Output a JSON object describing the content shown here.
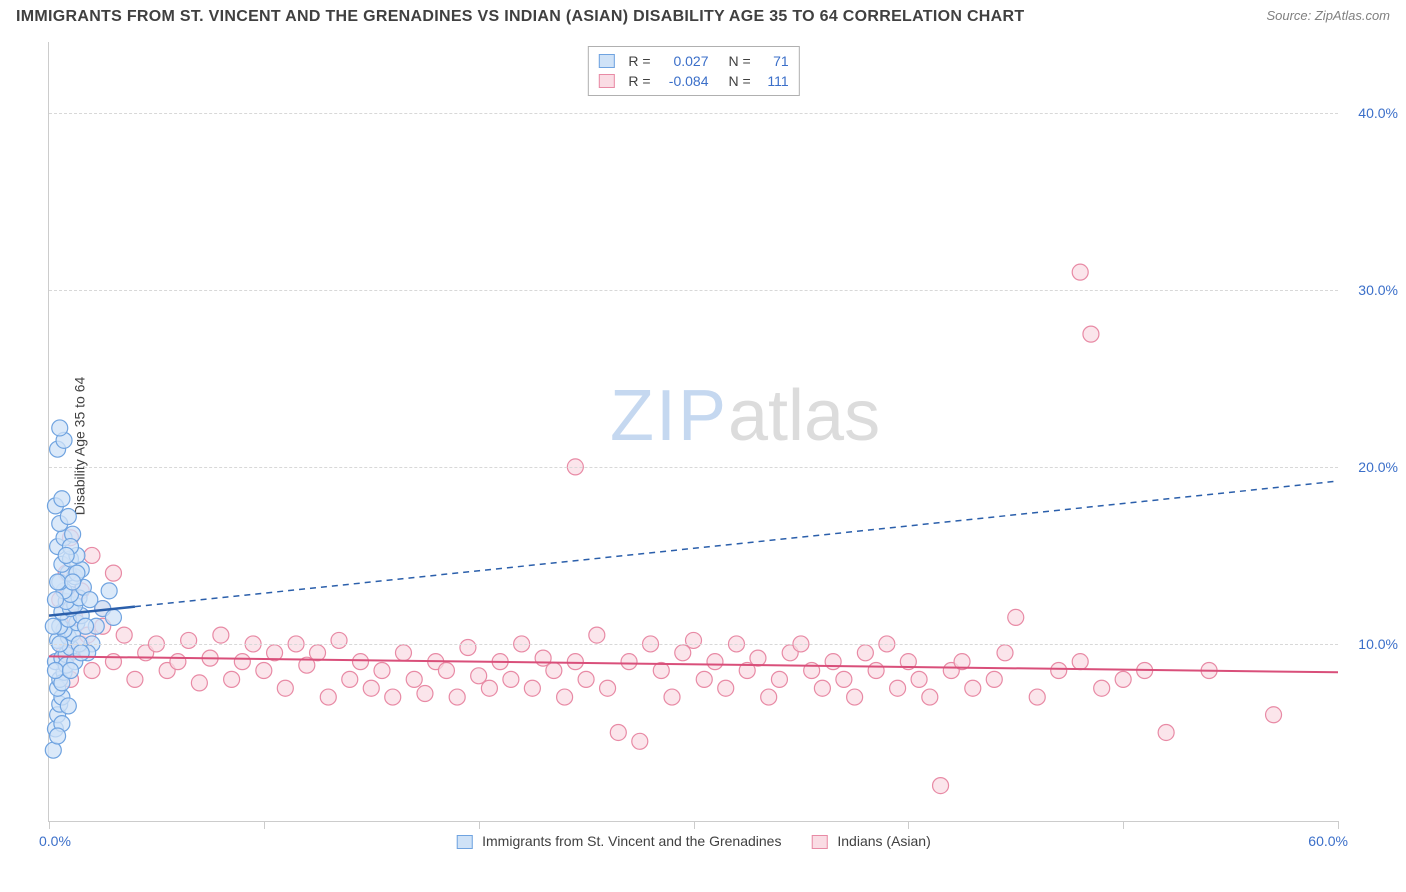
{
  "title": "IMMIGRANTS FROM ST. VINCENT AND THE GRENADINES VS INDIAN (ASIAN) DISABILITY AGE 35 TO 64 CORRELATION CHART",
  "source": "Source: ZipAtlas.com",
  "ylabel": "Disability Age 35 to 64",
  "watermark_a": "ZIP",
  "watermark_b": "atlas",
  "chart": {
    "type": "scatter",
    "xlim": [
      0,
      60
    ],
    "ylim": [
      0,
      44
    ],
    "y_ticks": [
      10,
      20,
      30,
      40
    ],
    "y_tick_labels": [
      "10.0%",
      "20.0%",
      "30.0%",
      "40.0%"
    ],
    "x_ticks": [
      0,
      10,
      20,
      30,
      40,
      50,
      60
    ],
    "x_label_min": "0.0%",
    "x_label_max": "60.0%",
    "grid_color": "#d8d8d8",
    "axis_color": "#cccccc",
    "background_color": "#ffffff",
    "tick_label_color": "#3b6fc9",
    "marker_radius": 8,
    "series": [
      {
        "name": "Immigrants from St. Vincent and the Grenadines",
        "fill": "#cfe2f7",
        "stroke": "#6fa3e0",
        "R": "0.027",
        "N": "71",
        "trend": {
          "x1": 0,
          "y1": 11.6,
          "x2": 60,
          "y2": 19.2,
          "color": "#2b5fab",
          "dash": "6,5",
          "width": 1.5,
          "solid_until_x": 4
        },
        "points": [
          [
            0.2,
            4.0
          ],
          [
            0.3,
            5.2
          ],
          [
            0.4,
            6.0
          ],
          [
            0.5,
            6.6
          ],
          [
            0.6,
            7.0
          ],
          [
            0.4,
            7.5
          ],
          [
            0.5,
            8.0
          ],
          [
            0.7,
            8.4
          ],
          [
            0.3,
            9.0
          ],
          [
            0.6,
            9.2
          ],
          [
            0.8,
            9.4
          ],
          [
            1.0,
            9.8
          ],
          [
            0.4,
            10.2
          ],
          [
            0.9,
            10.4
          ],
          [
            1.1,
            10.6
          ],
          [
            0.7,
            10.8
          ],
          [
            0.5,
            11.0
          ],
          [
            1.3,
            11.2
          ],
          [
            0.9,
            11.4
          ],
          [
            1.5,
            11.6
          ],
          [
            0.6,
            11.8
          ],
          [
            1.0,
            12.0
          ],
          [
            1.2,
            12.2
          ],
          [
            0.8,
            12.4
          ],
          [
            1.4,
            12.6
          ],
          [
            1.0,
            12.8
          ],
          [
            0.7,
            13.0
          ],
          [
            1.6,
            13.2
          ],
          [
            0.5,
            13.5
          ],
          [
            1.2,
            13.8
          ],
          [
            0.9,
            14.0
          ],
          [
            1.5,
            14.2
          ],
          [
            0.6,
            14.5
          ],
          [
            1.0,
            14.8
          ],
          [
            1.3,
            15.0
          ],
          [
            2.0,
            10.0
          ],
          [
            2.2,
            11.0
          ],
          [
            2.5,
            12.0
          ],
          [
            2.8,
            13.0
          ],
          [
            3.0,
            11.5
          ],
          [
            1.8,
            9.5
          ],
          [
            0.4,
            15.5
          ],
          [
            0.7,
            16.0
          ],
          [
            1.1,
            16.2
          ],
          [
            0.5,
            16.8
          ],
          [
            0.9,
            17.2
          ],
          [
            0.3,
            17.8
          ],
          [
            0.6,
            18.2
          ],
          [
            0.4,
            21.0
          ],
          [
            0.7,
            21.5
          ],
          [
            0.5,
            22.2
          ],
          [
            1.0,
            15.5
          ],
          [
            1.3,
            14.0
          ],
          [
            0.8,
            8.8
          ],
          [
            0.6,
            7.8
          ],
          [
            0.9,
            6.5
          ],
          [
            1.2,
            9.0
          ],
          [
            1.4,
            10.0
          ],
          [
            1.7,
            11.0
          ],
          [
            1.9,
            12.5
          ],
          [
            0.3,
            12.5
          ],
          [
            0.4,
            13.5
          ],
          [
            0.2,
            11.0
          ],
          [
            0.5,
            10.0
          ],
          [
            0.3,
            8.5
          ],
          [
            0.8,
            15.0
          ],
          [
            1.1,
            13.5
          ],
          [
            0.6,
            5.5
          ],
          [
            0.4,
            4.8
          ],
          [
            1.0,
            8.5
          ],
          [
            1.5,
            9.5
          ]
        ]
      },
      {
        "name": "Indians (Asian)",
        "fill": "#fadce4",
        "stroke": "#e88aa5",
        "R": "-0.084",
        "N": "111",
        "trend": {
          "x1": 0,
          "y1": 9.3,
          "x2": 60,
          "y2": 8.4,
          "color": "#d94f7a",
          "dash": null,
          "width": 2
        },
        "points": [
          [
            1.0,
            9.5
          ],
          [
            1.5,
            10.0
          ],
          [
            2.0,
            8.5
          ],
          [
            2.5,
            11.0
          ],
          [
            3.0,
            9.0
          ],
          [
            3.5,
            10.5
          ],
          [
            4.0,
            8.0
          ],
          [
            4.5,
            9.5
          ],
          [
            5.0,
            10.0
          ],
          [
            5.5,
            8.5
          ],
          [
            6.0,
            9.0
          ],
          [
            6.5,
            10.2
          ],
          [
            7.0,
            7.8
          ],
          [
            7.5,
            9.2
          ],
          [
            8.0,
            10.5
          ],
          [
            8.5,
            8.0
          ],
          [
            9.0,
            9.0
          ],
          [
            9.5,
            10.0
          ],
          [
            10.0,
            8.5
          ],
          [
            10.5,
            9.5
          ],
          [
            11.0,
            7.5
          ],
          [
            11.5,
            10.0
          ],
          [
            12.0,
            8.8
          ],
          [
            12.5,
            9.5
          ],
          [
            13.0,
            7.0
          ],
          [
            13.5,
            10.2
          ],
          [
            14.0,
            8.0
          ],
          [
            14.5,
            9.0
          ],
          [
            15.0,
            7.5
          ],
          [
            15.5,
            8.5
          ],
          [
            16.0,
            7.0
          ],
          [
            16.5,
            9.5
          ],
          [
            17.0,
            8.0
          ],
          [
            17.5,
            7.2
          ],
          [
            18.0,
            9.0
          ],
          [
            18.5,
            8.5
          ],
          [
            19.0,
            7.0
          ],
          [
            19.5,
            9.8
          ],
          [
            20.0,
            8.2
          ],
          [
            20.5,
            7.5
          ],
          [
            21.0,
            9.0
          ],
          [
            21.5,
            8.0
          ],
          [
            22.0,
            10.0
          ],
          [
            22.5,
            7.5
          ],
          [
            23.0,
            9.2
          ],
          [
            23.5,
            8.5
          ],
          [
            24.0,
            7.0
          ],
          [
            24.5,
            9.0
          ],
          [
            25.0,
            8.0
          ],
          [
            25.5,
            10.5
          ],
          [
            26.0,
            7.5
          ],
          [
            26.5,
            5.0
          ],
          [
            27.0,
            9.0
          ],
          [
            27.5,
            4.5
          ],
          [
            28.0,
            10.0
          ],
          [
            28.5,
            8.5
          ],
          [
            29.0,
            7.0
          ],
          [
            29.5,
            9.5
          ],
          [
            30.0,
            10.2
          ],
          [
            30.5,
            8.0
          ],
          [
            31.0,
            9.0
          ],
          [
            31.5,
            7.5
          ],
          [
            32.0,
            10.0
          ],
          [
            32.5,
            8.5
          ],
          [
            33.0,
            9.2
          ],
          [
            33.5,
            7.0
          ],
          [
            34.0,
            8.0
          ],
          [
            34.5,
            9.5
          ],
          [
            35.0,
            10.0
          ],
          [
            35.5,
            8.5
          ],
          [
            36.0,
            7.5
          ],
          [
            36.5,
            9.0
          ],
          [
            37.0,
            8.0
          ],
          [
            37.5,
            7.0
          ],
          [
            38.0,
            9.5
          ],
          [
            38.5,
            8.5
          ],
          [
            39.0,
            10.0
          ],
          [
            39.5,
            7.5
          ],
          [
            40.0,
            9.0
          ],
          [
            40.5,
            8.0
          ],
          [
            41.0,
            7.0
          ],
          [
            41.5,
            2.0
          ],
          [
            42.0,
            8.5
          ],
          [
            42.5,
            9.0
          ],
          [
            43.0,
            7.5
          ],
          [
            44.0,
            8.0
          ],
          [
            44.5,
            9.5
          ],
          [
            45.0,
            11.5
          ],
          [
            46.0,
            7.0
          ],
          [
            47.0,
            8.5
          ],
          [
            48.0,
            9.0
          ],
          [
            49.0,
            7.5
          ],
          [
            50.0,
            8.0
          ],
          [
            51.0,
            8.5
          ],
          [
            52.0,
            5.0
          ],
          [
            54.0,
            8.5
          ],
          [
            57.0,
            6.0
          ],
          [
            48.0,
            31.0
          ],
          [
            48.5,
            27.5
          ],
          [
            24.5,
            20.0
          ],
          [
            2.0,
            15.0
          ],
          [
            3.0,
            14.0
          ],
          [
            1.5,
            13.0
          ],
          [
            2.5,
            12.0
          ],
          [
            1.0,
            16.0
          ],
          [
            1.2,
            11.5
          ],
          [
            1.8,
            10.5
          ],
          [
            0.8,
            14.0
          ],
          [
            0.5,
            12.5
          ],
          [
            1.0,
            8.0
          ],
          [
            0.7,
            9.5
          ]
        ]
      }
    ]
  },
  "bottom_legend": [
    {
      "label": "Immigrants from St. Vincent and the Grenadines",
      "fill": "#cfe2f7",
      "stroke": "#6fa3e0"
    },
    {
      "label": "Indians (Asian)",
      "fill": "#fadce4",
      "stroke": "#e88aa5"
    }
  ]
}
